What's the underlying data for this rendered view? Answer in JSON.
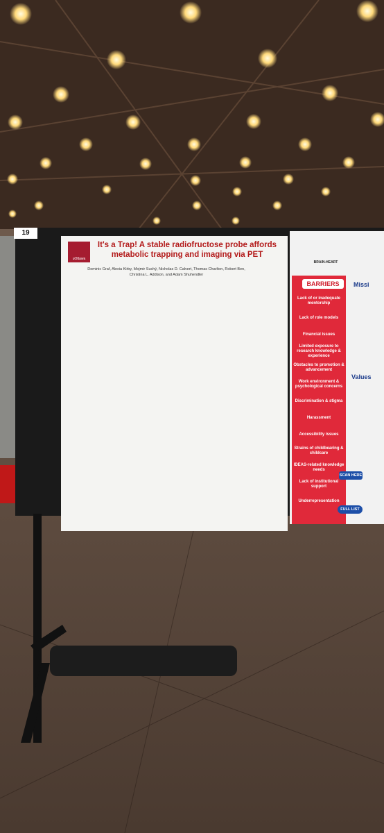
{
  "photo": {
    "board_number": "19",
    "poster": {
      "institution": "uOttawa",
      "title": "It's a Trap! A stable radiofructose probe affords metabolic trapping and imaging via PET",
      "authors": "Dominic Graf, Alexia Kirby, Mojmir Suchý, Nicholas D. Calvert, Thomas Charlton, Robert Ben, Christina L. Addison, and Adam Shuhendler"
    },
    "side_poster": {
      "network": "BRAIN-HEART",
      "barriers_title": "BARRIERS",
      "barriers": [
        "Lack of or inadequate mentorship",
        "Lack of role models",
        "Financial issues",
        "Limited exposure to research knowledge & experience",
        "Obstacles to promotion & advancement",
        "Work environment & psychological concerns",
        "Discrimination & stigma",
        "Harassment",
        "Accessibility issues",
        "Strains of childbearing & childcare",
        "IDEAS-related knowledge needs",
        "Lack of institutional support",
        "Underrepresentation"
      ],
      "mission_title": "Missi",
      "values_title": "Values",
      "scan_label": "SCAN HERE",
      "full_list_label": "FULL LIST"
    }
  }
}
